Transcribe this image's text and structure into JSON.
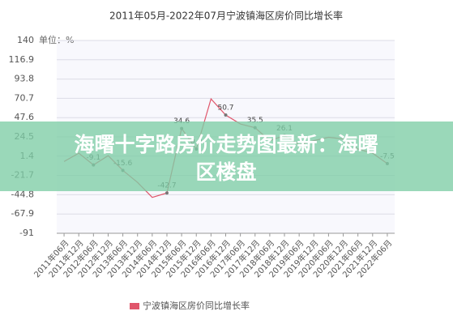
{
  "chart_data": {
    "type": "line",
    "title": "2011年05月-2022年07月宁波镇海区房价同比增长率",
    "y_unit": "单位：%",
    "categories": [
      "2011年06月",
      "2011年12月",
      "2012年06月",
      "2012年12月",
      "2013年06月",
      "2013年12月",
      "2014年06月",
      "2014年12月",
      "2015年06月",
      "2015年12月",
      "2016年06月",
      "2016年12月",
      "2017年06月",
      "2017年12月",
      "2018年06月",
      "2018年12月",
      "2019年06月",
      "2019年12月",
      "2020年06月",
      "2020年12月",
      "2021年06月",
      "2021年12月",
      "2022年06月"
    ],
    "series": [
      {
        "name": "宁波镇海区房价同比增长率",
        "color": "#e0566b",
        "values": [
          -5,
          5,
          -9.1,
          2,
          -15.6,
          -30,
          -48,
          -42.7,
          34.6,
          9.9,
          70,
          50.7,
          40,
          35.5,
          20,
          26.1,
          15,
          20,
          24,
          22,
          10,
          5,
          -7.5
        ],
        "value_labels": [
          null,
          null,
          "-9.1",
          null,
          "-15.6",
          null,
          null,
          "-42.7",
          "34.6",
          "9.9",
          null,
          "50.7",
          null,
          "35.5",
          null,
          "26.1",
          null,
          null,
          null,
          null,
          null,
          null,
          "-7.5"
        ]
      }
    ],
    "ylim": [
      -91,
      140
    ],
    "yticks": [
      140,
      116.9,
      93.8,
      70.7,
      47.6,
      24.5,
      1.4,
      -21.7,
      -44.8,
      -67.9,
      -91
    ],
    "grid": true,
    "legend": "bottom"
  },
  "banner": {
    "lines": [
      "海曙十字路房价走势图最新：海曙",
      "区楼盘"
    ]
  }
}
